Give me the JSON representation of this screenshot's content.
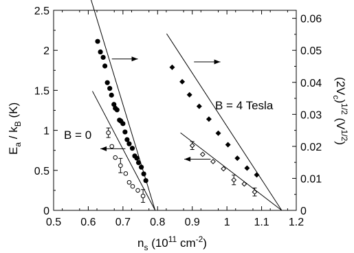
{
  "chart_data": {
    "type": "scatter",
    "x_label": {
      "main": "n",
      "sub": "s",
      "rest": " (10",
      "sup1": "11",
      "mid": " cm",
      "sup2": "-2",
      "end": ")"
    },
    "y_left_label": {
      "a": "E",
      "a_sub": "a",
      "b": " / k",
      "b_sub": "B",
      "c": " (K)"
    },
    "y_right_label": {
      "a": "(2V",
      "a_sub": "c",
      "b": ")",
      "b_sup": "1/2",
      "c": " (V",
      "c_sup": "1/2",
      "d": ")"
    },
    "xlim": [
      0.5,
      1.2
    ],
    "ylim_left": [
      0,
      2.5
    ],
    "ylim_right": [
      0,
      0.0625
    ],
    "x_ticks": [
      "0.5",
      "0.6",
      "0.7",
      "0.8",
      "0.9",
      "1",
      "1.1",
      "1.2"
    ],
    "y_left_ticks": [
      "0",
      "0.5",
      "1",
      "1.5",
      "2",
      "2.5"
    ],
    "y_right_ticks": [
      "0",
      "0.01",
      "0.02",
      "0.03",
      "0.04",
      "0.05",
      "0.06"
    ],
    "annotations": {
      "b0": "B = 0",
      "b4": "B = 4 Tesla"
    },
    "series": [
      {
        "axis": "right",
        "marker": "filled-circle",
        "x": [
          0.627,
          0.635,
          0.643,
          0.648,
          0.655,
          0.662,
          0.667,
          0.674,
          0.678,
          0.683,
          0.69,
          0.694,
          0.7,
          0.706,
          0.712,
          0.718,
          0.727,
          0.734,
          0.74,
          0.745,
          0.753,
          0.76,
          0.766
        ],
        "y": [
          0.0528,
          0.0495,
          0.0478,
          0.0451,
          0.0399,
          0.0381,
          0.036,
          0.0331,
          0.0319,
          0.0314,
          0.0282,
          0.0279,
          0.0271,
          0.0245,
          0.0221,
          0.0208,
          0.0194,
          0.017,
          0.0163,
          0.0149,
          0.0135,
          0.0114,
          0.0093
        ]
      },
      {
        "axis": "right",
        "marker": "filled-diamond",
        "x": [
          0.842,
          0.871,
          0.892,
          0.92,
          0.948,
          0.975,
          1.003,
          1.03,
          1.058,
          1.086
        ],
        "y": [
          0.0447,
          0.0402,
          0.0361,
          0.0325,
          0.0285,
          0.0241,
          0.0205,
          0.0163,
          0.0132,
          0.0111
        ]
      },
      {
        "axis": "left",
        "marker": "open-circle",
        "x": [
          0.658,
          0.668,
          0.678,
          0.693,
          0.708,
          0.718,
          0.728,
          0.743,
          0.758
        ],
        "y": [
          0.97,
          0.8,
          0.66,
          0.56,
          0.46,
          0.35,
          0.3,
          0.25,
          0.18
        ],
        "err": [
          0.06,
          0,
          0,
          0.09,
          0,
          0,
          0,
          0,
          0.08
        ]
      },
      {
        "axis": "left",
        "marker": "open-diamond",
        "x": [
          0.9,
          0.93,
          0.96,
          0.99,
          1.02,
          1.05,
          1.08
        ],
        "y": [
          0.81,
          0.7,
          0.61,
          0.52,
          0.38,
          0.33,
          0.23
        ],
        "err": [
          0.05,
          0,
          0,
          0,
          0.06,
          0,
          0.05
        ]
      }
    ],
    "fit_lines": [
      {
        "axis": "right",
        "x": [
          0.608,
          0.793
        ],
        "y": [
          0.0658,
          0.0
        ]
      },
      {
        "axis": "right",
        "x": [
          0.826,
          1.158
        ],
        "y": [
          0.0552,
          0.0
        ]
      },
      {
        "axis": "left",
        "x": [
          0.612,
          0.793
        ],
        "y": [
          1.49,
          0.0
        ]
      },
      {
        "axis": "left",
        "x": [
          0.866,
          1.158
        ],
        "y": [
          0.97,
          0.0
        ]
      }
    ],
    "direction_arrows": [
      {
        "from": [
          0.668,
          0.0473
        ],
        "to": [
          0.743,
          0.0473
        ],
        "axis": "right"
      },
      {
        "from": [
          0.905,
          0.0464
        ],
        "to": [
          0.981,
          0.0464
        ],
        "axis": "right"
      },
      {
        "from": [
          0.707,
          0.77
        ],
        "to": [
          0.635,
          0.77
        ],
        "axis": "left"
      },
      {
        "from": [
          0.953,
          0.64
        ],
        "to": [
          0.877,
          0.64
        ],
        "axis": "left"
      }
    ]
  }
}
